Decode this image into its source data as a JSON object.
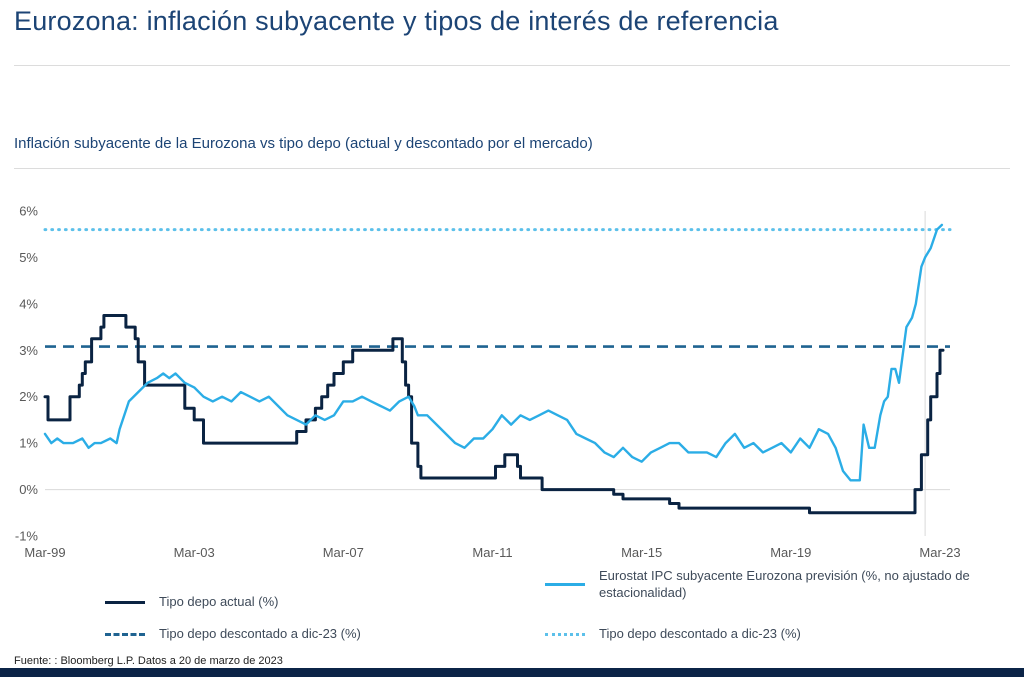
{
  "page": {
    "title": "Eurozona: inflación subyacente y tipos de interés de referencia",
    "subtitle": "Inflación subyacente de la Eurozona vs tipo depo (actual y descontado por el mercado)",
    "source": "Fuente: : Bloomberg L.P. Datos a 20 de marzo de 2023"
  },
  "colors": {
    "navy": "#0a2342",
    "blue": "#2bade6",
    "dashed_navy": "#1f6391",
    "dotted_blue": "#5cc0ea",
    "title_navy": "#1c4475",
    "axis_gray": "#595959",
    "grid": "#d9d9d9",
    "bottom_bar": "#0b2447"
  },
  "legend": [
    {
      "label": "Tipo depo actual (%)",
      "style": "solid",
      "color_key": "navy"
    },
    {
      "label": "Eurostat IPC subyacente Eurozona previsión (%, no ajustado de estacionalidad)",
      "style": "solid",
      "color_key": "blue"
    },
    {
      "label": "Tipo depo descontado a dic-23 (%)",
      "style": "dashed",
      "color_key": "dashed_navy"
    },
    {
      "label": "Tipo depo descontado a dic-23 (%)",
      "style": "dotted",
      "color_key": "dotted_blue"
    }
  ],
  "chart_data": {
    "type": "line",
    "title": "Inflación subyacente de la Eurozona vs tipo depo (actual y descontado por el mercado)",
    "x_unit": "years since Mar-1999",
    "ylim": [
      -1,
      6
    ],
    "grid": "baseline only",
    "legend_position": "bottom",
    "vline_x": 23.6,
    "x_ticks": [
      {
        "x": 0,
        "label": "Mar-99"
      },
      {
        "x": 4,
        "label": "Mar-03"
      },
      {
        "x": 8,
        "label": "Mar-07"
      },
      {
        "x": 12,
        "label": "Mar-11"
      },
      {
        "x": 16,
        "label": "Mar-15"
      },
      {
        "x": 20,
        "label": "Mar-19"
      },
      {
        "x": 24,
        "label": "Mar-23"
      }
    ],
    "y_ticks": [
      {
        "v": 6,
        "label": "6%"
      },
      {
        "v": 5,
        "label": "5%"
      },
      {
        "v": 4,
        "label": "4%"
      },
      {
        "v": 3,
        "label": "3%"
      },
      {
        "v": 2,
        "label": "2%"
      },
      {
        "v": 1,
        "label": "1%"
      },
      {
        "v": 0,
        "label": "0%"
      },
      {
        "v": -1,
        "label": "-1%"
      }
    ],
    "reference_lines": [
      {
        "label": "Tipo depo descontado a dic-23 (%)",
        "value": 3.08,
        "style": "dashed",
        "color_key": "dashed_navy"
      },
      {
        "label": "Tipo depo descontado a dic-23 (%)",
        "value": 5.6,
        "style": "dotted",
        "color_key": "dotted_blue"
      }
    ],
    "series": [
      {
        "name": "Tipo depo actual (%)",
        "type": "step",
        "color_key": "navy",
        "points": [
          [
            0,
            2.0
          ],
          [
            0.08,
            1.5
          ],
          [
            0.67,
            2.0
          ],
          [
            0.92,
            2.25
          ],
          [
            1.0,
            2.5
          ],
          [
            1.08,
            2.75
          ],
          [
            1.25,
            3.25
          ],
          [
            1.5,
            3.5
          ],
          [
            1.58,
            3.75
          ],
          [
            2.17,
            3.5
          ],
          [
            2.42,
            3.25
          ],
          [
            2.5,
            2.75
          ],
          [
            2.67,
            2.25
          ],
          [
            3.75,
            1.75
          ],
          [
            4.0,
            1.5
          ],
          [
            4.25,
            1.0
          ],
          [
            6.75,
            1.25
          ],
          [
            7.0,
            1.5
          ],
          [
            7.25,
            1.75
          ],
          [
            7.42,
            2.0
          ],
          [
            7.58,
            2.25
          ],
          [
            7.75,
            2.5
          ],
          [
            8.0,
            2.75
          ],
          [
            8.25,
            3.0
          ],
          [
            9.33,
            3.25
          ],
          [
            9.58,
            2.75
          ],
          [
            9.67,
            2.25
          ],
          [
            9.75,
            2.0
          ],
          [
            9.83,
            1.0
          ],
          [
            10.0,
            0.5
          ],
          [
            10.08,
            0.25
          ],
          [
            12.08,
            0.5
          ],
          [
            12.33,
            0.75
          ],
          [
            12.67,
            0.5
          ],
          [
            12.75,
            0.25
          ],
          [
            13.33,
            0.0
          ],
          [
            15.25,
            -0.1
          ],
          [
            15.5,
            -0.2
          ],
          [
            16.75,
            -0.3
          ],
          [
            17.0,
            -0.4
          ],
          [
            20.5,
            -0.5
          ],
          [
            23.33,
            0.0
          ],
          [
            23.5,
            0.75
          ],
          [
            23.67,
            1.5
          ],
          [
            23.75,
            2.0
          ],
          [
            23.92,
            2.5
          ],
          [
            24.0,
            3.0
          ],
          [
            24.08,
            3.0
          ]
        ]
      },
      {
        "name": "Eurostat IPC subyacente Eurozona previsión (%, no ajustado de estacionalidad)",
        "type": "line",
        "color_key": "blue",
        "points": [
          [
            0,
            1.2
          ],
          [
            0.17,
            1.0
          ],
          [
            0.33,
            1.1
          ],
          [
            0.5,
            1.0
          ],
          [
            0.75,
            1.0
          ],
          [
            1.0,
            1.1
          ],
          [
            1.17,
            0.9
          ],
          [
            1.33,
            1.0
          ],
          [
            1.5,
            1.0
          ],
          [
            1.75,
            1.1
          ],
          [
            1.92,
            1.0
          ],
          [
            2.0,
            1.3
          ],
          [
            2.25,
            1.9
          ],
          [
            2.5,
            2.1
          ],
          [
            2.75,
            2.3
          ],
          [
            3.0,
            2.4
          ],
          [
            3.17,
            2.5
          ],
          [
            3.33,
            2.4
          ],
          [
            3.5,
            2.5
          ],
          [
            3.75,
            2.3
          ],
          [
            4.0,
            2.2
          ],
          [
            4.25,
            2.0
          ],
          [
            4.5,
            1.9
          ],
          [
            4.75,
            2.0
          ],
          [
            5.0,
            1.9
          ],
          [
            5.25,
            2.1
          ],
          [
            5.5,
            2.0
          ],
          [
            5.75,
            1.9
          ],
          [
            6.0,
            2.0
          ],
          [
            6.25,
            1.8
          ],
          [
            6.5,
            1.6
          ],
          [
            6.75,
            1.5
          ],
          [
            7.0,
            1.4
          ],
          [
            7.25,
            1.6
          ],
          [
            7.5,
            1.5
          ],
          [
            7.75,
            1.6
          ],
          [
            8.0,
            1.9
          ],
          [
            8.25,
            1.9
          ],
          [
            8.5,
            2.0
          ],
          [
            8.75,
            1.9
          ],
          [
            9.0,
            1.8
          ],
          [
            9.25,
            1.7
          ],
          [
            9.5,
            1.9
          ],
          [
            9.75,
            2.0
          ],
          [
            9.9,
            1.8
          ],
          [
            10.0,
            1.6
          ],
          [
            10.25,
            1.6
          ],
          [
            10.5,
            1.4
          ],
          [
            10.75,
            1.2
          ],
          [
            11.0,
            1.0
          ],
          [
            11.25,
            0.9
          ],
          [
            11.5,
            1.1
          ],
          [
            11.75,
            1.1
          ],
          [
            12.0,
            1.3
          ],
          [
            12.25,
            1.6
          ],
          [
            12.5,
            1.4
          ],
          [
            12.75,
            1.6
          ],
          [
            13.0,
            1.5
          ],
          [
            13.25,
            1.6
          ],
          [
            13.5,
            1.7
          ],
          [
            13.75,
            1.6
          ],
          [
            14.0,
            1.5
          ],
          [
            14.25,
            1.2
          ],
          [
            14.5,
            1.1
          ],
          [
            14.75,
            1.0
          ],
          [
            15.0,
            0.8
          ],
          [
            15.25,
            0.7
          ],
          [
            15.5,
            0.9
          ],
          [
            15.75,
            0.7
          ],
          [
            16.0,
            0.6
          ],
          [
            16.25,
            0.8
          ],
          [
            16.5,
            0.9
          ],
          [
            16.75,
            1.0
          ],
          [
            17.0,
            1.0
          ],
          [
            17.25,
            0.8
          ],
          [
            17.5,
            0.8
          ],
          [
            17.75,
            0.8
          ],
          [
            18.0,
            0.7
          ],
          [
            18.25,
            1.0
          ],
          [
            18.5,
            1.2
          ],
          [
            18.75,
            0.9
          ],
          [
            19.0,
            1.0
          ],
          [
            19.25,
            0.8
          ],
          [
            19.5,
            0.9
          ],
          [
            19.75,
            1.0
          ],
          [
            20.0,
            0.8
          ],
          [
            20.25,
            1.1
          ],
          [
            20.5,
            0.9
          ],
          [
            20.75,
            1.3
          ],
          [
            21.0,
            1.2
          ],
          [
            21.2,
            0.9
          ],
          [
            21.4,
            0.4
          ],
          [
            21.6,
            0.2
          ],
          [
            21.85,
            0.2
          ],
          [
            21.95,
            1.4
          ],
          [
            22.1,
            0.9
          ],
          [
            22.25,
            0.9
          ],
          [
            22.4,
            1.6
          ],
          [
            22.5,
            1.9
          ],
          [
            22.6,
            2.0
          ],
          [
            22.7,
            2.6
          ],
          [
            22.8,
            2.6
          ],
          [
            22.9,
            2.3
          ],
          [
            23.0,
            2.9
          ],
          [
            23.1,
            3.5
          ],
          [
            23.25,
            3.7
          ],
          [
            23.35,
            4.0
          ],
          [
            23.5,
            4.8
          ],
          [
            23.6,
            5.0
          ],
          [
            23.75,
            5.2
          ],
          [
            23.92,
            5.6
          ],
          [
            24.05,
            5.7
          ]
        ]
      }
    ]
  }
}
